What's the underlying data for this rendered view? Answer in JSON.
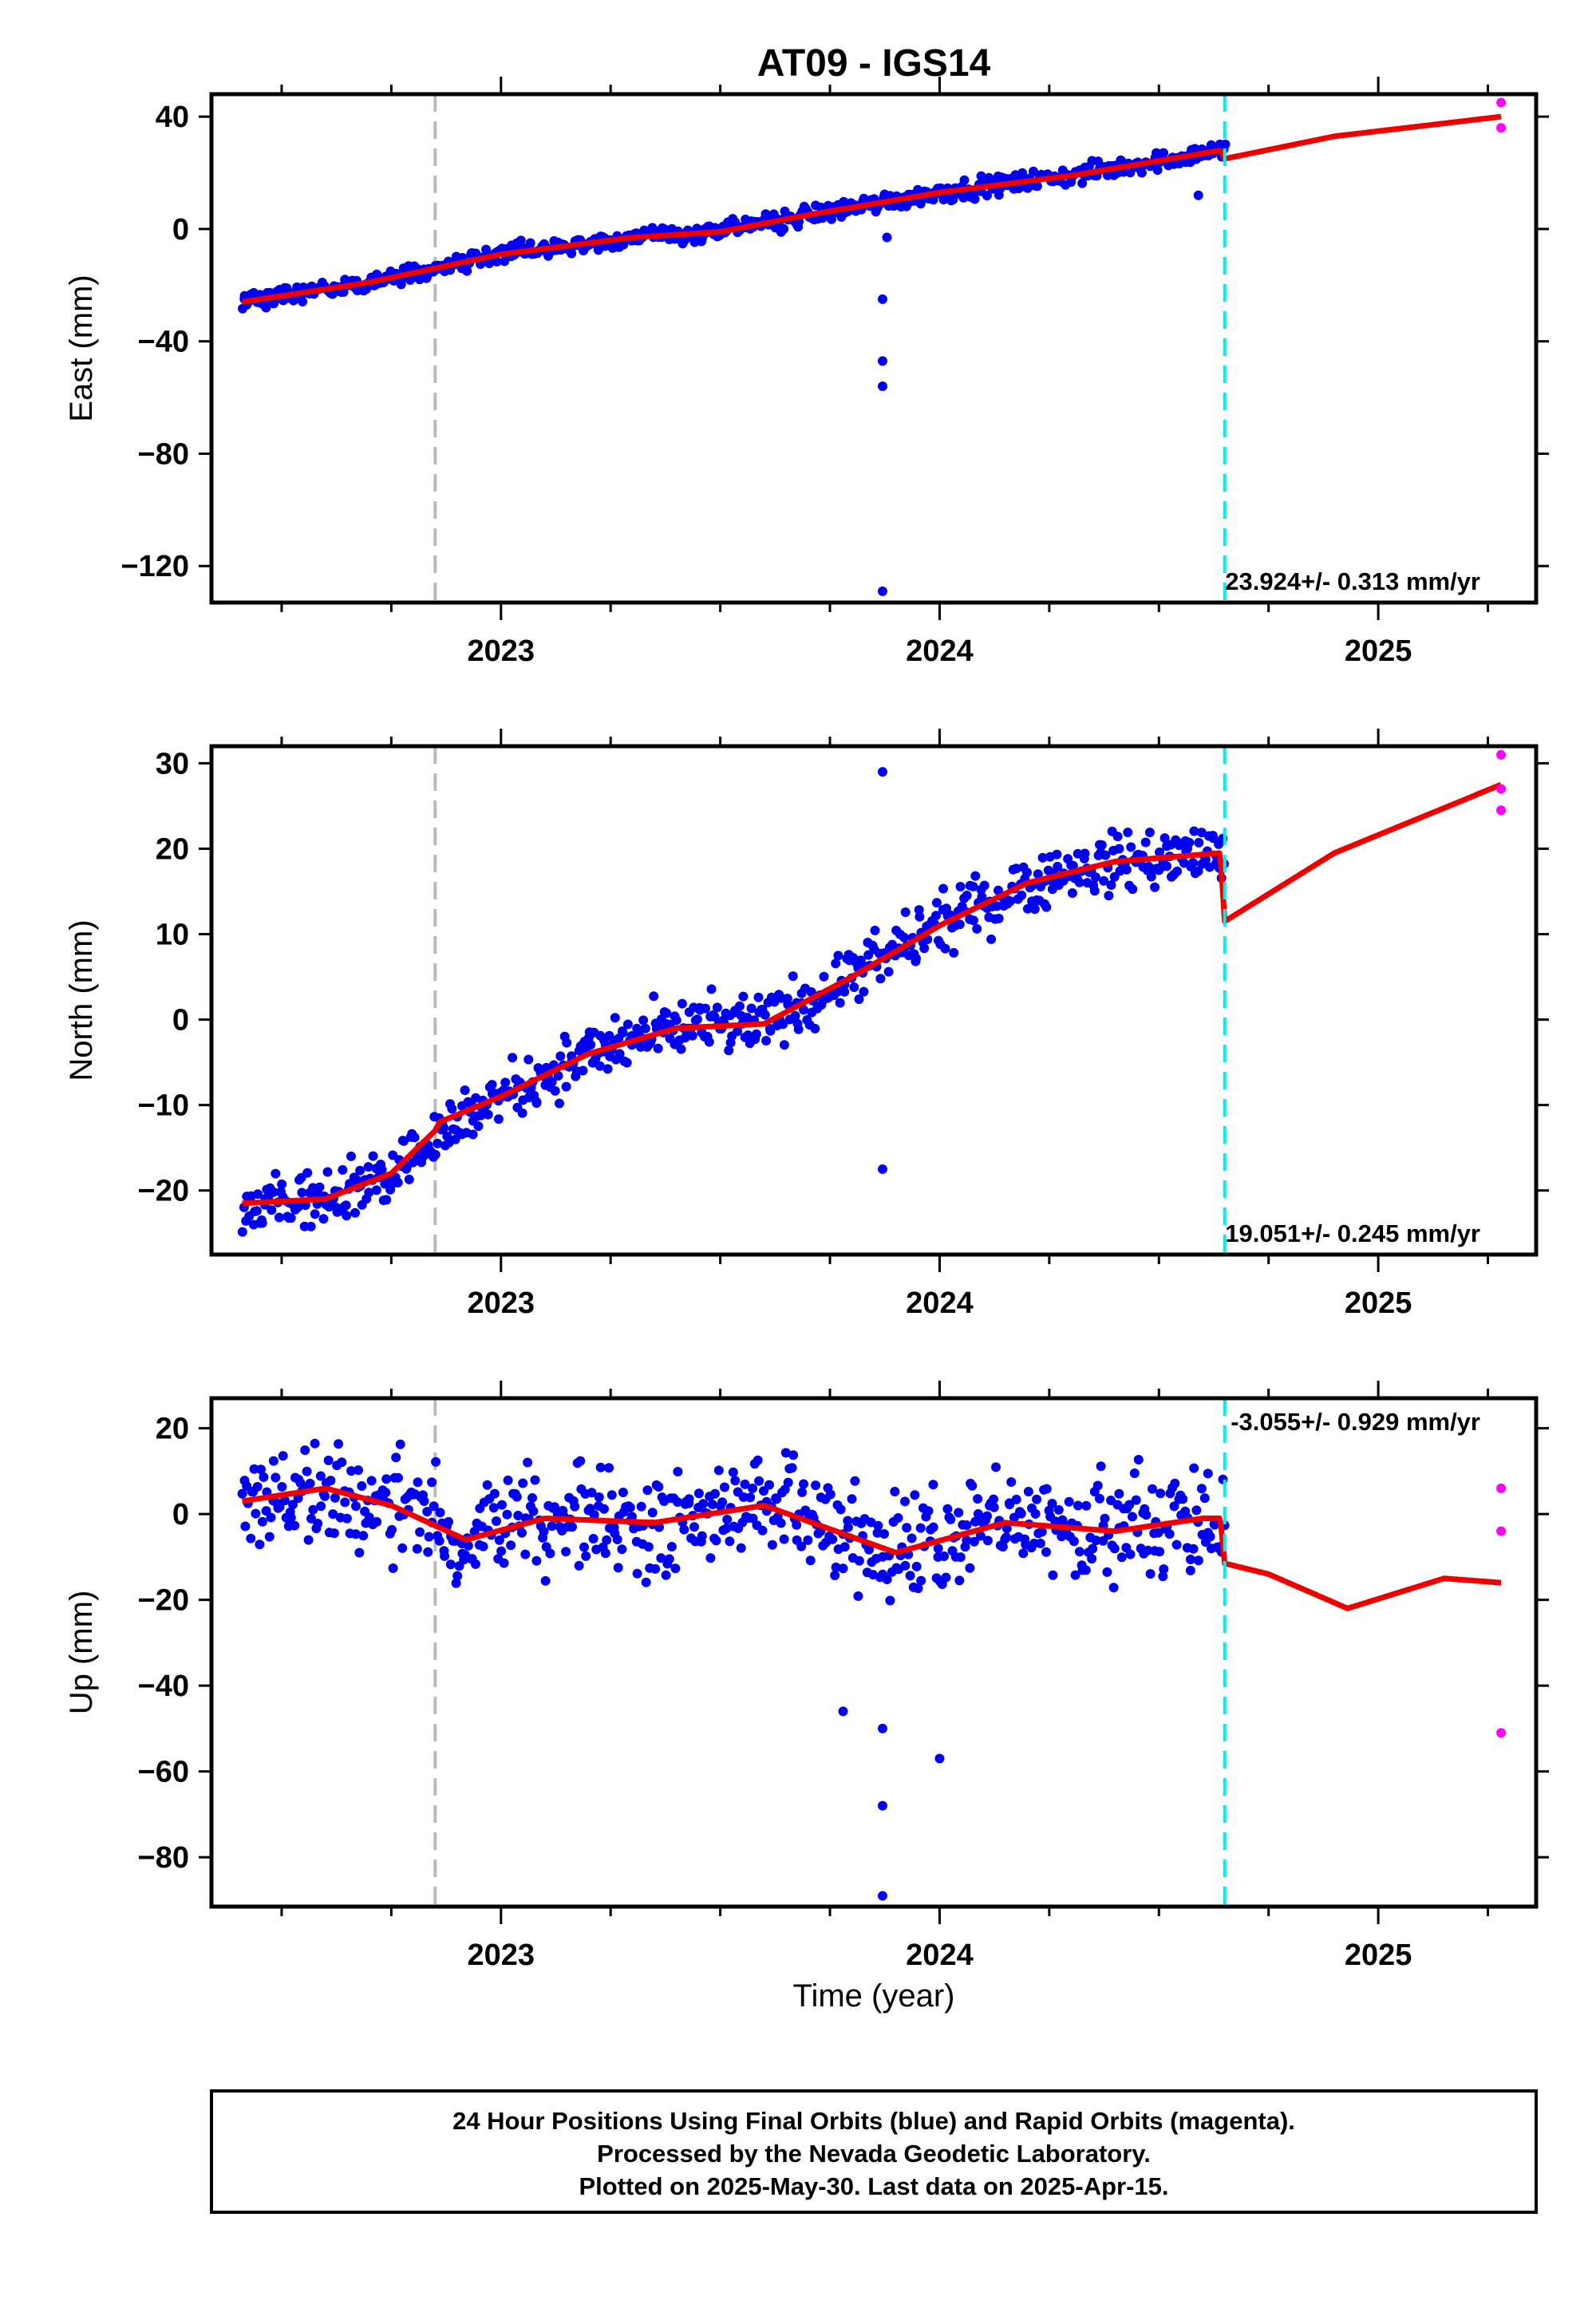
{
  "figure": {
    "title": "AT09 - IGS14",
    "xlabel": "Time (year)",
    "caption": [
      "24 Hour Positions Using Final Orbits (blue) and Rapid Orbits (magenta).",
      "Processed by the Nevada Geodetic Laboratory.",
      "Plotted on 2025-May-30. Last data on 2025-Apr-15."
    ],
    "colors": {
      "final_points": "#0000ee",
      "rapid_points": "#ff00ff",
      "model_line": "#ee0000",
      "equipment_change_line": "#bbbbbb",
      "offset_line": "#00eeee",
      "frame": "#000000"
    }
  },
  "chart_data": [
    {
      "type": "scatter",
      "name": "east",
      "ylabel": "East (mm)",
      "xlim": [
        2022.34,
        2025.36
      ],
      "ylim": [
        -133,
        48
      ],
      "yticks": [
        40,
        0,
        -40,
        -80,
        -120
      ],
      "yticklabels": [
        "40",
        "0",
        "−40",
        "−80",
        "−120"
      ],
      "xticks": [
        2023,
        2024,
        2025
      ],
      "xticklabels": [
        "2023",
        "2024",
        "2025"
      ],
      "rate_label": "23.924+/- 0.313 mm/yr",
      "rate_position": "bottom-right",
      "grey_dashed_x": 2022.85,
      "cyan_dashed_x": 2024.65,
      "final_data_range": [
        2022.41,
        2024.65
      ],
      "model": {
        "x": [
          2022.41,
          2022.7,
          2023.0,
          2023.3,
          2023.5,
          2023.7,
          2024.0,
          2024.3,
          2024.64,
          2024.65,
          2024.9,
          2025.28
        ],
        "y": [
          -26,
          -19,
          -9,
          -3,
          -1,
          5,
          13,
          19,
          28,
          25,
          33,
          40
        ]
      },
      "noise": 2.5,
      "outliers": [
        {
          "x": 2023.87,
          "y": -25
        },
        {
          "x": 2023.87,
          "y": -47
        },
        {
          "x": 2023.87,
          "y": -56
        },
        {
          "x": 2023.87,
          "y": -129
        },
        {
          "x": 2023.88,
          "y": -3
        },
        {
          "x": 2024.59,
          "y": 12
        }
      ],
      "rapid": [
        {
          "x": 2025.28,
          "y": 45
        },
        {
          "x": 2025.28,
          "y": 36
        }
      ]
    },
    {
      "type": "scatter",
      "name": "north",
      "ylabel": "North (mm)",
      "xlim": [
        2022.34,
        2025.36
      ],
      "ylim": [
        -27.5,
        32
      ],
      "yticks": [
        30,
        20,
        10,
        0,
        -10,
        -20
      ],
      "yticklabels": [
        "30",
        "20",
        "10",
        "0",
        "−10",
        "−20"
      ],
      "xticks": [
        2023,
        2024,
        2025
      ],
      "xticklabels": [
        "2023",
        "2024",
        "2025"
      ],
      "rate_label": "19.051+/- 0.245 mm/yr",
      "rate_position": "bottom-right",
      "grey_dashed_x": 2022.85,
      "cyan_dashed_x": 2024.65,
      "final_data_range": [
        2022.41,
        2024.65
      ],
      "model": {
        "x": [
          2022.41,
          2022.6,
          2022.75,
          2022.85,
          2022.86,
          2023.0,
          2023.2,
          2023.4,
          2023.6,
          2023.8,
          2024.0,
          2024.2,
          2024.4,
          2024.64,
          2024.65,
          2024.9,
          2025.28
        ],
        "y": [
          -21.5,
          -21,
          -18,
          -13,
          -12,
          -9,
          -4,
          -1,
          -0.5,
          5,
          11,
          16,
          18.5,
          19.5,
          11.5,
          19.5,
          27.5
        ]
      },
      "noise": 2.6,
      "outliers": [
        {
          "x": 2023.87,
          "y": 29
        },
        {
          "x": 2023.87,
          "y": -17.5
        }
      ],
      "rapid": [
        {
          "x": 2025.28,
          "y": 31
        },
        {
          "x": 2025.28,
          "y": 27
        },
        {
          "x": 2025.28,
          "y": 24.5
        }
      ]
    },
    {
      "type": "scatter",
      "name": "up",
      "ylabel": "Up (mm)",
      "xlim": [
        2022.34,
        2025.36
      ],
      "ylim": [
        -91.5,
        27
      ],
      "yticks": [
        20,
        0,
        -20,
        -40,
        -60,
        -80
      ],
      "yticklabels": [
        "20",
        "0",
        "−20",
        "−40",
        "−60",
        "−80"
      ],
      "xticks": [
        2023,
        2024,
        2025
      ],
      "xticklabels": [
        "2023",
        "2024",
        "2025"
      ],
      "rate_label": "-3.055+/- 0.929 mm/yr",
      "rate_position": "top-right",
      "grey_dashed_x": 2022.85,
      "cyan_dashed_x": 2024.65,
      "final_data_range": [
        2022.41,
        2024.65
      ],
      "model": {
        "x": [
          2022.41,
          2022.6,
          2022.75,
          2022.92,
          2023.1,
          2023.35,
          2023.6,
          2023.9,
          2024.15,
          2024.4,
          2024.6,
          2024.64,
          2024.65,
          2024.75,
          2024.93,
          2025.15,
          2025.28
        ],
        "y": [
          3,
          6,
          2,
          -6,
          -1,
          -2,
          2,
          -9,
          -2,
          -4,
          -1,
          -1,
          -11.5,
          -14,
          -22,
          -15,
          -16
        ]
      },
      "noise": 9,
      "outliers": [
        {
          "x": 2023.87,
          "y": -68
        },
        {
          "x": 2023.87,
          "y": -89
        },
        {
          "x": 2024.0,
          "y": -57
        },
        {
          "x": 2023.87,
          "y": -50
        },
        {
          "x": 2023.78,
          "y": -46
        }
      ],
      "rapid": [
        {
          "x": 2025.28,
          "y": 6
        },
        {
          "x": 2025.28,
          "y": -4
        },
        {
          "x": 2025.28,
          "y": -51
        }
      ]
    }
  ]
}
